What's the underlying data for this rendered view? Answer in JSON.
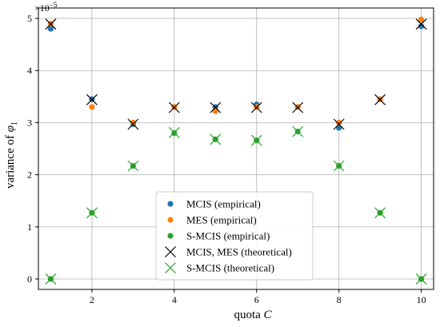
{
  "chart_data": {
    "type": "scatter",
    "xlabel_text": "quota ",
    "xlabel_var": "C",
    "ylabel_text": "variance of ",
    "ylabel_var": "φ",
    "ylabel_sub": "1",
    "scale_label": "×10",
    "scale_exp": "−5",
    "xlim": [
      0.7,
      10.3
    ],
    "ylim": [
      -0.2,
      5.2
    ],
    "x_ticks": [
      2,
      4,
      6,
      8,
      10
    ],
    "y_ticks": [
      0,
      1,
      2,
      3,
      4,
      5
    ],
    "grid": true,
    "legend_position": "bottom-center",
    "colors": {
      "mcis": "#1f77b4",
      "mes": "#ff7f0e",
      "smcis": "#2ca02c",
      "theory": "#000000"
    },
    "series": [
      {
        "name": "MCIS (empirical)",
        "marker": "dot",
        "color_key": "mcis",
        "x": [
          1,
          2,
          3,
          4,
          5,
          6,
          7,
          8,
          9,
          10
        ],
        "y": [
          4.8,
          3.45,
          2.97,
          3.3,
          3.3,
          3.35,
          3.3,
          2.9,
          3.45,
          4.85
        ]
      },
      {
        "name": "MES (empirical)",
        "marker": "dot",
        "color_key": "mes",
        "x": [
          1,
          2,
          3,
          4,
          5,
          6,
          7,
          8,
          9,
          10
        ],
        "y": [
          4.9,
          3.3,
          3.0,
          3.3,
          3.22,
          3.3,
          3.3,
          3.0,
          3.45,
          4.98
        ]
      },
      {
        "name": "S-MCIS (empirical)",
        "marker": "dot",
        "color_key": "smcis",
        "x": [
          1,
          2,
          3,
          4,
          5,
          6,
          7,
          8,
          9,
          10
        ],
        "y": [
          0.0,
          1.27,
          2.17,
          2.8,
          2.68,
          2.66,
          2.83,
          2.17,
          1.27,
          0.0
        ]
      },
      {
        "name": "MCIS, MES (theoretical)",
        "marker": "cross",
        "color_key": "theory",
        "x": [
          1,
          2,
          3,
          4,
          5,
          6,
          7,
          8,
          9,
          10
        ],
        "y": [
          4.89,
          3.44,
          2.97,
          3.29,
          3.29,
          3.29,
          3.29,
          2.97,
          3.44,
          4.89
        ]
      },
      {
        "name": "S-MCIS (theoretical)",
        "marker": "cross",
        "color_key": "smcis",
        "x": [
          1,
          2,
          3,
          4,
          5,
          6,
          7,
          8,
          9,
          10
        ],
        "y": [
          0.0,
          1.27,
          2.17,
          2.81,
          2.68,
          2.66,
          2.83,
          2.17,
          1.27,
          0.0
        ]
      }
    ]
  }
}
